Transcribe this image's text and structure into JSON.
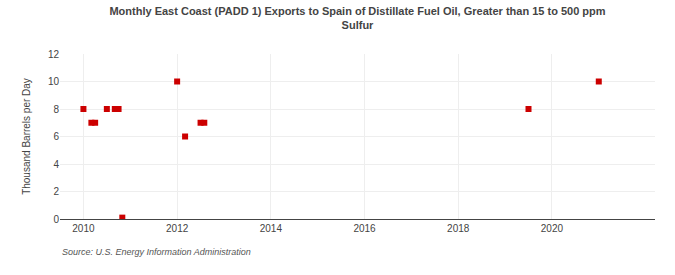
{
  "chart_data": {
    "type": "scatter",
    "title": "Monthly East Coast (PADD 1) Exports to Spain of Distillate Fuel Oil, Greater than 15 to 500 ppm\nSulfur",
    "y_label": "Thousand Barrels per Day",
    "annotation": "Source: U.S. Energy Information Administration",
    "x": [
      2010.0,
      2010.17,
      2010.25,
      2010.5,
      2010.67,
      2010.75,
      2010.83,
      2012.0,
      2012.17,
      2012.5,
      2012.58,
      2019.5,
      2021.0
    ],
    "values": [
      8.0,
      7.0,
      7.0,
      8.0,
      8.0,
      8.0,
      0.1,
      10.0,
      6.0,
      7.0,
      7.0,
      8.0,
      10.0
    ],
    "color": "#cc0000",
    "marker": "square",
    "xlim": [
      2009.5,
      2022.2
    ],
    "xticks": [
      2010,
      2012,
      2014,
      2016,
      2018,
      2020
    ],
    "ylim": [
      0,
      12
    ],
    "yticks": [
      0,
      2,
      4,
      6,
      8,
      10,
      12
    ],
    "grid": true
  }
}
